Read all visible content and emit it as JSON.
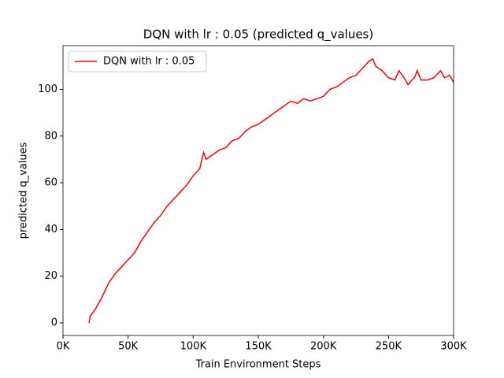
{
  "chart_data": {
    "type": "line",
    "title": "DQN with lr : 0.05 (predicted q_values)",
    "x_label": "Train Environment Steps",
    "y_label": "predicted q_values",
    "x": [
      20000,
      21000,
      25000,
      30000,
      35000,
      40000,
      45000,
      50000,
      55000,
      60000,
      65000,
      70000,
      75000,
      80000,
      85000,
      90000,
      95000,
      100000,
      105000,
      108000,
      110000,
      115000,
      120000,
      125000,
      130000,
      135000,
      140000,
      145000,
      150000,
      155000,
      160000,
      165000,
      170000,
      175000,
      180000,
      185000,
      190000,
      195000,
      200000,
      205000,
      210000,
      215000,
      220000,
      225000,
      230000,
      235000,
      238000,
      240000,
      245000,
      250000,
      255000,
      258000,
      262000,
      265000,
      268000,
      270000,
      272000,
      275000,
      280000,
      285000,
      290000,
      293000,
      297000,
      300000
    ],
    "series": [
      {
        "name": "DQN with lr : 0.05",
        "color": "#ff0000",
        "values": [
          0,
          3,
          6,
          11,
          17,
          21,
          24,
          27,
          30,
          35,
          39,
          43,
          46,
          50,
          53,
          56,
          59,
          63,
          66,
          73,
          70,
          72,
          74,
          75,
          78,
          79,
          82,
          84,
          85,
          87,
          89,
          91,
          93,
          95,
          94,
          96,
          95,
          96,
          97,
          100,
          101,
          103,
          105,
          106,
          109,
          112,
          113,
          110,
          108,
          105,
          104,
          108,
          105,
          102,
          104,
          105,
          108,
          104,
          104,
          105,
          108,
          105,
          106,
          103
        ]
      }
    ],
    "xlim": [
      0,
      300000
    ],
    "ylim": [
      -5.4,
      118.7
    ],
    "xticks": [
      {
        "value": 0,
        "label": "0K"
      },
      {
        "value": 50000,
        "label": "50K"
      },
      {
        "value": 100000,
        "label": "100K"
      },
      {
        "value": 150000,
        "label": "150K"
      },
      {
        "value": 200000,
        "label": "200K"
      },
      {
        "value": 250000,
        "label": "250K"
      },
      {
        "value": 300000,
        "label": "300K"
      }
    ],
    "yticks": [
      0,
      20,
      40,
      60,
      80,
      100
    ],
    "legend": "upper left"
  }
}
